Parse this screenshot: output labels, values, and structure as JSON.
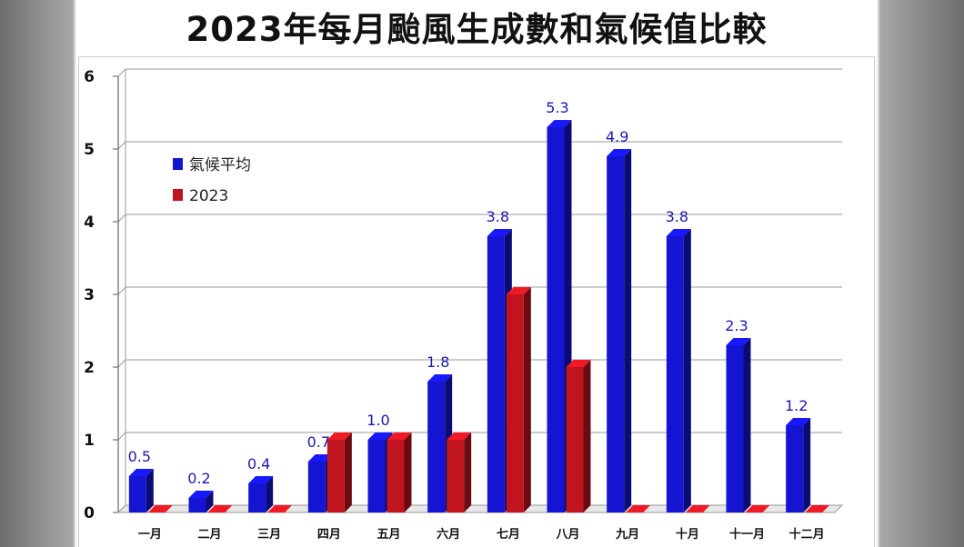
{
  "title": "2023年每月颱風生成數和氣候值比較",
  "colors": {
    "climate": "#1414d2",
    "y2023": "#c0141e"
  },
  "chart_data": {
    "type": "bar",
    "title": "2023年每月颱風生成數和氣候值比較",
    "xlabel": "",
    "ylabel": "",
    "ylim": [
      0,
      6
    ],
    "yticks": [
      "0",
      "1",
      "2",
      "3",
      "4",
      "5",
      "6"
    ],
    "grid": true,
    "legend": "top-left",
    "categories": [
      "一月",
      "二月",
      "三月",
      "四月",
      "五月",
      "六月",
      "七月",
      "八月",
      "九月",
      "十月",
      "十一月",
      "十二月"
    ],
    "series": [
      {
        "name": "氣候平均",
        "values": [
          0.5,
          0.2,
          0.4,
          0.7,
          1.0,
          1.8,
          3.8,
          5.3,
          4.9,
          3.8,
          2.3,
          1.2
        ],
        "labels": [
          "0.5",
          "0.2",
          "0.4",
          "0.7",
          "1.0",
          "1.8",
          "3.8",
          "5.3",
          "4.9",
          "3.8",
          "2.3",
          "1.2"
        ]
      },
      {
        "name": "2023",
        "values": [
          0,
          0,
          0,
          1,
          1,
          1,
          3,
          2,
          0,
          0,
          0,
          0
        ]
      }
    ]
  }
}
